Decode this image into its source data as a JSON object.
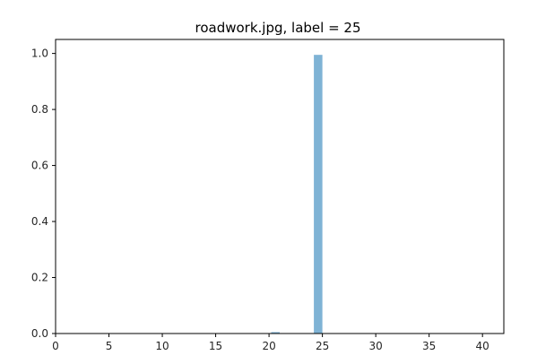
{
  "chart_data": {
    "type": "bar",
    "title": "roadwork.jpg, label = 25",
    "xlabel": "",
    "ylabel": "",
    "xlim": [
      0,
      42
    ],
    "ylim": [
      0,
      1.05
    ],
    "x_ticks": [
      0,
      5,
      10,
      15,
      20,
      25,
      30,
      35,
      40
    ],
    "y_ticks": [
      0.0,
      0.2,
      0.4,
      0.6,
      0.8,
      1.0
    ],
    "y_tick_labels": [
      "0.0",
      "0.2",
      "0.4",
      "0.6",
      "0.8",
      "1.0"
    ],
    "grid": false,
    "bar_width": 0.8,
    "bar_color": "#7fb3d5",
    "x": [
      20.6,
      24.6
    ],
    "values": [
      0.005,
      0.995
    ]
  }
}
